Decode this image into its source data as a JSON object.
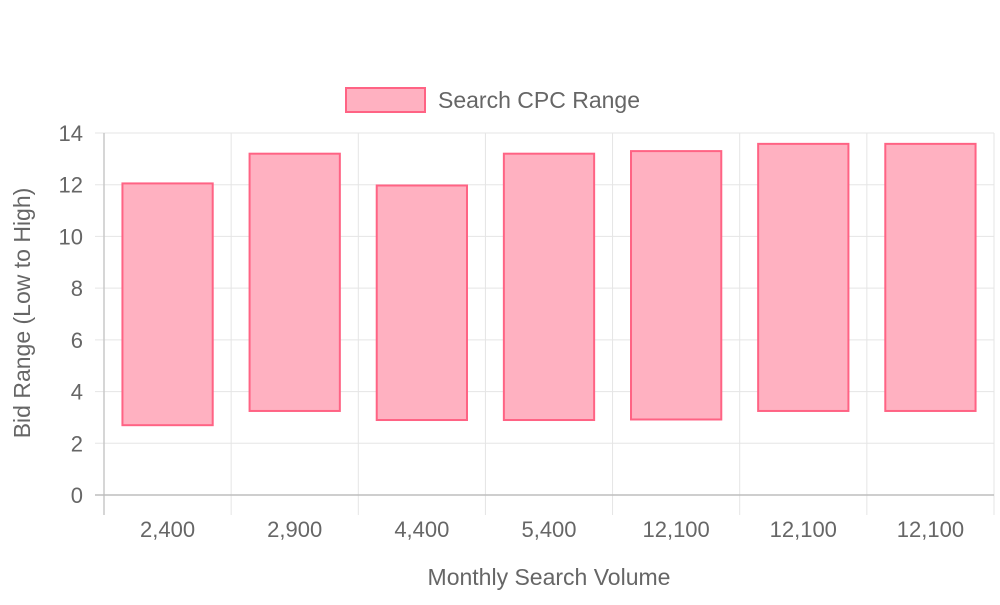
{
  "chart_data": {
    "type": "bar",
    "bar_style": "floating-range",
    "categories": [
      "2,400",
      "2,900",
      "4,400",
      "5,400",
      "12,100",
      "12,100",
      "12,100"
    ],
    "series": [
      {
        "name": "Search CPC Range",
        "ranges": [
          [
            2.7,
            12.05
          ],
          [
            3.25,
            13.2
          ],
          [
            2.9,
            11.97
          ],
          [
            2.9,
            13.2
          ],
          [
            2.92,
            13.3
          ],
          [
            3.25,
            13.58
          ],
          [
            3.25,
            13.58
          ]
        ],
        "color": "#ff6384",
        "fill": "#ffb1c1"
      }
    ],
    "xlabel": "Monthly Search Volume",
    "ylabel": "Bid Range (Low to High)",
    "ylim": [
      0,
      14
    ],
    "yticks": [
      0,
      2,
      4,
      6,
      8,
      10,
      12,
      14
    ],
    "grid": true,
    "legend_position": "top-center"
  }
}
